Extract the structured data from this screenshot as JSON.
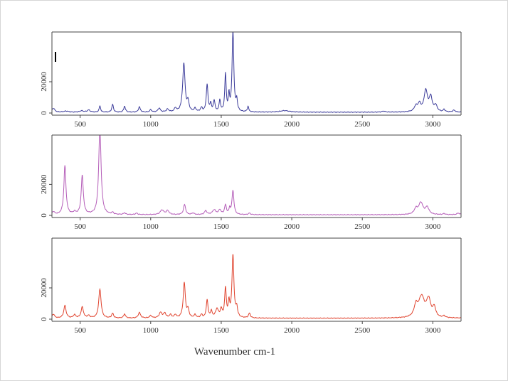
{
  "chart_data": [
    {
      "type": "line",
      "panel": "top",
      "color": "#3b3b9a",
      "xlim": [
        300,
        3200
      ],
      "ylim": [
        0,
        50000
      ],
      "x_ticks": [
        500,
        1000,
        1500,
        2000,
        2500,
        3000
      ],
      "y_ticks": [
        0,
        20000
      ],
      "y_tick_labels": [
        "0",
        "20000"
      ],
      "x_tick_labels": [
        "500",
        "1000",
        "1500",
        "2000",
        "2500",
        "3000"
      ],
      "baseline": 500,
      "peaks": [
        [
          310,
          2500,
          12
        ],
        [
          400,
          700,
          20
        ],
        [
          510,
          900,
          15
        ],
        [
          560,
          1400,
          12
        ],
        [
          640,
          4000,
          6
        ],
        [
          730,
          5000,
          7
        ],
        [
          815,
          3800,
          7
        ],
        [
          920,
          3300,
          8
        ],
        [
          1000,
          1500,
          8
        ],
        [
          1060,
          2500,
          10
        ],
        [
          1120,
          1800,
          10
        ],
        [
          1175,
          2400,
          8
        ],
        [
          1235,
          31000,
          10
        ],
        [
          1265,
          6000,
          8
        ],
        [
          1315,
          2200,
          8
        ],
        [
          1360,
          2500,
          8
        ],
        [
          1400,
          17500,
          7
        ],
        [
          1425,
          5000,
          6
        ],
        [
          1450,
          7000,
          7
        ],
        [
          1490,
          7500,
          6
        ],
        [
          1530,
          24000,
          6
        ],
        [
          1555,
          10000,
          5
        ],
        [
          1583,
          53000,
          7
        ],
        [
          1610,
          7000,
          6
        ],
        [
          1690,
          3500,
          6
        ],
        [
          1950,
          1000,
          40
        ],
        [
          2650,
          600,
          15
        ],
        [
          2880,
          3500,
          15
        ],
        [
          2905,
          4500,
          12
        ],
        [
          2950,
          13500,
          15
        ],
        [
          2985,
          9000,
          12
        ],
        [
          3020,
          4000,
          12
        ],
        [
          3080,
          1500,
          8
        ],
        [
          3150,
          1200,
          10
        ]
      ]
    },
    {
      "type": "line",
      "panel": "middle",
      "color": "#b45cb8",
      "xlim": [
        300,
        3200
      ],
      "ylim": [
        0,
        50000
      ],
      "x_ticks": [
        500,
        1000,
        1500,
        2000,
        2500,
        3000
      ],
      "y_ticks": [
        0,
        20000
      ],
      "y_tick_labels": [
        "0",
        "20000"
      ],
      "x_tick_labels": [
        "500",
        "1000",
        "1500",
        "2000",
        "2500",
        "3000"
      ],
      "baseline": 400,
      "peaks": [
        [
          310,
          1800,
          10
        ],
        [
          392,
          31500,
          9
        ],
        [
          460,
          1500,
          10
        ],
        [
          515,
          25000,
          9
        ],
        [
          640,
          56000,
          10
        ],
        [
          730,
          1200,
          8
        ],
        [
          815,
          1100,
          8
        ],
        [
          900,
          900,
          10
        ],
        [
          1080,
          3000,
          15
        ],
        [
          1120,
          2500,
          12
        ],
        [
          1240,
          6500,
          9
        ],
        [
          1300,
          1000,
          10
        ],
        [
          1390,
          2500,
          10
        ],
        [
          1450,
          3000,
          15
        ],
        [
          1490,
          3000,
          10
        ],
        [
          1530,
          6000,
          8
        ],
        [
          1560,
          3500,
          6
        ],
        [
          1583,
          15500,
          8
        ],
        [
          1700,
          1000,
          8
        ],
        [
          2880,
          3500,
          15
        ],
        [
          2915,
          7500,
          18
        ],
        [
          2960,
          4500,
          15
        ],
        [
          3080,
          600,
          10
        ],
        [
          3180,
          1000,
          12
        ]
      ]
    },
    {
      "type": "line",
      "panel": "bottom",
      "color": "#e0432e",
      "xlim": [
        300,
        3200
      ],
      "ylim": [
        0,
        50000
      ],
      "x_ticks": [
        500,
        1000,
        1500,
        2000,
        2500,
        3000
      ],
      "y_ticks": [
        0,
        20000
      ],
      "y_tick_labels": [
        "0",
        "20000"
      ],
      "x_tick_labels": [
        "500",
        "1000",
        "1500",
        "2000",
        "2500",
        "3000"
      ],
      "baseline": 600,
      "peaks": [
        [
          310,
          2500,
          10
        ],
        [
          392,
          8000,
          10
        ],
        [
          460,
          2000,
          10
        ],
        [
          515,
          7000,
          10
        ],
        [
          560,
          1500,
          10
        ],
        [
          640,
          18500,
          10
        ],
        [
          730,
          3000,
          8
        ],
        [
          815,
          2600,
          8
        ],
        [
          920,
          3500,
          10
        ],
        [
          1000,
          1500,
          10
        ],
        [
          1070,
          3500,
          12
        ],
        [
          1100,
          3000,
          10
        ],
        [
          1140,
          2000,
          10
        ],
        [
          1175,
          2000,
          8
        ],
        [
          1238,
          22500,
          9
        ],
        [
          1265,
          5000,
          8
        ],
        [
          1315,
          2000,
          8
        ],
        [
          1360,
          2000,
          8
        ],
        [
          1400,
          11500,
          7
        ],
        [
          1430,
          4000,
          8
        ],
        [
          1470,
          5500,
          12
        ],
        [
          1500,
          5000,
          8
        ],
        [
          1530,
          18500,
          7
        ],
        [
          1555,
          9000,
          6
        ],
        [
          1583,
          40000,
          8
        ],
        [
          1610,
          6000,
          7
        ],
        [
          1700,
          3000,
          8
        ],
        [
          2880,
          7000,
          15
        ],
        [
          2920,
          13000,
          25
        ],
        [
          2970,
          11000,
          18
        ],
        [
          3010,
          6000,
          12
        ],
        [
          3080,
          1000,
          10
        ]
      ]
    }
  ],
  "xlabel": "Wavenumber cm-1"
}
